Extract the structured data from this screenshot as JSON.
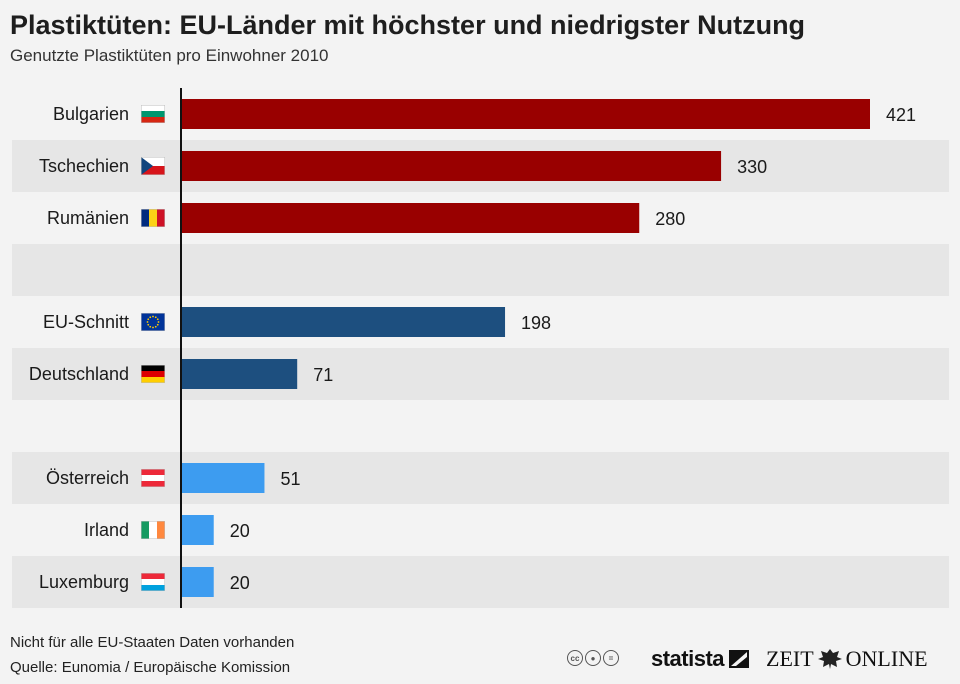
{
  "title": "Plastiktüten: EU-Länder mit höchster und niedrigster Nutzung",
  "subtitle": "Genutzte Plastiktüten pro Einwohner 2010",
  "chart_data": {
    "type": "bar",
    "orientation": "horizontal",
    "title": "Plastiktüten: EU-Länder mit höchster und niedrigster Nutzung",
    "subtitle": "Genutzte Plastiktüten pro Einwohner 2010",
    "xlim": [
      0,
      421
    ],
    "grid": false,
    "rows": [
      {
        "label": "Bulgarien",
        "value": 421,
        "group": "high",
        "flag": "bulgaria-flag"
      },
      {
        "label": "Tschechien",
        "value": 330,
        "group": "high",
        "flag": "czech-flag"
      },
      {
        "label": "Rumänien",
        "value": 280,
        "group": "high",
        "flag": "romania-flag"
      },
      {
        "label": "",
        "value": null,
        "group": "gap",
        "flag": ""
      },
      {
        "label": "EU-Schnitt",
        "value": 198,
        "group": "mid",
        "flag": "eu-flag"
      },
      {
        "label": "Deutschland",
        "value": 71,
        "group": "mid",
        "flag": "germany-flag"
      },
      {
        "label": "",
        "value": null,
        "group": "gap",
        "flag": ""
      },
      {
        "label": "Österreich",
        "value": 51,
        "group": "low",
        "flag": "austria-flag"
      },
      {
        "label": "Irland",
        "value": 20,
        "group": "low",
        "flag": "ireland-flag"
      },
      {
        "label": "Luxemburg",
        "value": 20,
        "group": "low",
        "flag": "luxembourg-flag"
      }
    ],
    "group_colors": {
      "high": "#990000",
      "mid": "#1d4f7f",
      "low": "#3d9cf0"
    }
  },
  "footnote": {
    "note": "Nicht für alle EU-Staaten Daten vorhanden",
    "source": "Quelle: Eunomia / Europäische Komission"
  },
  "logos": {
    "cc_icons": [
      "creative-commons-icon",
      "attribution-icon",
      "no-derivatives-icon"
    ],
    "statista": "statista",
    "zeit_left": "ZEIT",
    "zeit_right": "ONLINE"
  },
  "colors": {
    "background": "#f3f3f3",
    "stripe": "#e6e6e6",
    "axis": "#111111"
  }
}
